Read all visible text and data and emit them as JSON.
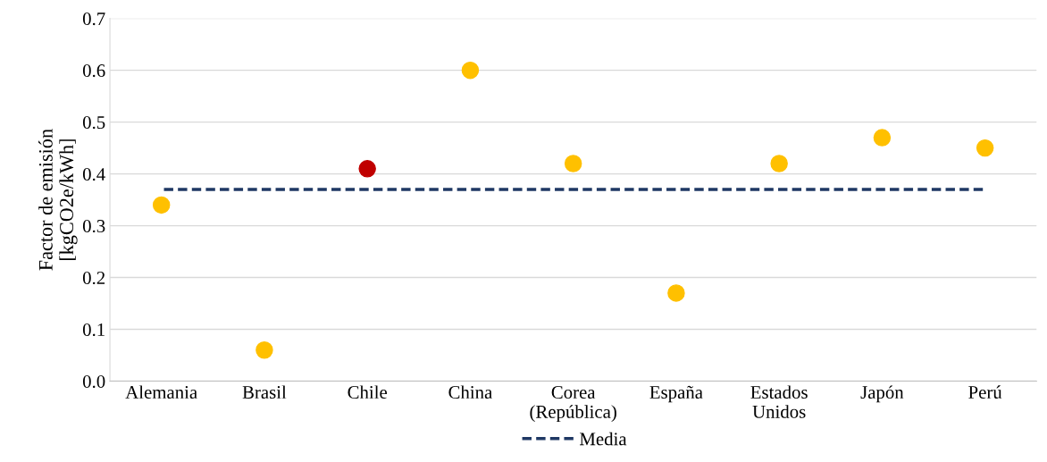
{
  "chart_data": {
    "type": "scatter",
    "ylabel": "Factor de emisión\n[kgCO2e/kWh]",
    "categories": [
      "Alemania",
      "Brasil",
      "Chile",
      "China",
      "Corea\n(República)",
      "España",
      "Estados\nUnidos",
      "Japón",
      "Perú"
    ],
    "series": [
      {
        "marker": "circle",
        "colors": [
          "#ffc000",
          "#ffc000",
          "#c00000",
          "#ffc000",
          "#ffc000",
          "#ffc000",
          "#ffc000",
          "#ffc000",
          "#ffc000"
        ],
        "values": [
          0.34,
          0.06,
          0.41,
          0.6,
          0.42,
          0.17,
          0.42,
          0.47,
          0.45
        ]
      },
      {
        "type": "line",
        "marker": "none",
        "name": "Media",
        "color": "#1f3864",
        "line_style": "dashed",
        "values": [
          0.37,
          0.37,
          0.37,
          0.37,
          0.37,
          0.37,
          0.37,
          0.37,
          0.37
        ]
      }
    ],
    "ylim": [
      0,
      0.7
    ],
    "yticks": [
      {
        "value": 0,
        "label": "0.0"
      },
      0.1,
      0.2,
      0.3,
      0.4,
      0.5,
      0.6,
      0.7
    ],
    "grid": "y",
    "legend": "bottom"
  }
}
